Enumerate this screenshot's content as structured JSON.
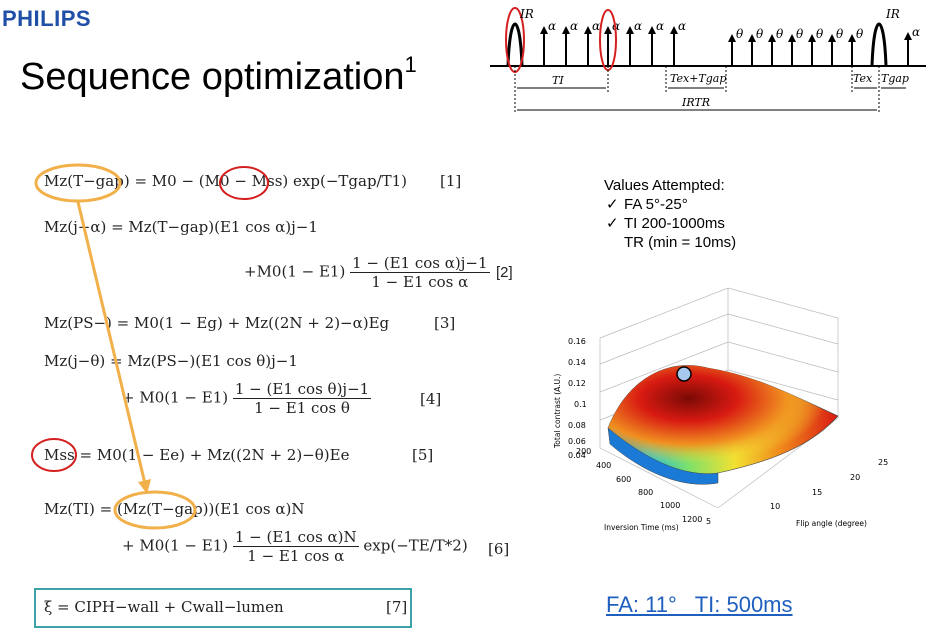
{
  "logo": "PHILIPS",
  "title": {
    "text": "Sequence optimization",
    "superscript": "1"
  },
  "diagram": {
    "ir_left": "IR",
    "ir_right": "IR",
    "alpha": "α",
    "theta": "θ",
    "ti": "TI",
    "tex_tgap": "Tex+Tgap",
    "irtr": "IRTR",
    "tex": "Tex",
    "tgap": "Tgap"
  },
  "equations": {
    "eq1": {
      "lhs": "Mz(T−gap)",
      "rhs": "= M0 − (M0 − Mss) exp(−Tgap/T1)",
      "number": "[1]"
    },
    "eq2a": {
      "text": "Mz(j−α) = Mz(T−gap)(E1 cos α)j−1"
    },
    "eq2b": {
      "prefix": "+M0(1 − E1)",
      "num": "1 − (E1 cos α)j−1",
      "den": "1 − E1 cos α",
      "number": "[2]"
    },
    "eq3": {
      "text": "Mz(PS−) = M0(1 − Eg) + Mz((2N + 2)−α)Eg",
      "number": "[3]"
    },
    "eq4a": {
      "text": "Mz(j−θ) = Mz(PS−)(E1 cos θ)j−1"
    },
    "eq4b": {
      "prefix": "+ M0(1 − E1)",
      "num": "1 − (E1 cos θ)j−1",
      "den": "1 − E1 cos θ",
      "number": "[4]"
    },
    "eq5": {
      "text": "Mss = M0(1 − Ee) + Mz((2N + 2)−θ)Ee",
      "number": "[5]"
    },
    "eq6a": {
      "text": "Mz(TI) = (Mz(T−gap))(E1 cos α)N"
    },
    "eq6b": {
      "prefix": "+ M0(1 − E1)",
      "num": "1 − (E1 cos α)N",
      "den": "1 − E1 cos α",
      "suffix": "exp(−TE/T*2)",
      "number": "[6]"
    },
    "eq7": {
      "text": "ξ = CIPH−wall + Cwall−lumen",
      "number": "[7]"
    }
  },
  "values_attempted": {
    "heading": "Values Attempted:",
    "check": "✓",
    "fa": "FA 5°-25°",
    "ti": "TI 200-1000ms",
    "tr": "TR (min = 10ms)"
  },
  "plot": {
    "zlabel": "Total contrast (A.U.)",
    "xlabel": "Inversion Time (ms)",
    "ylabel": "Flip angle (degree)",
    "z_ticks": [
      "0.16",
      "0.14",
      "0.12",
      "0.1",
      "0.08",
      "0.06",
      "0.04"
    ],
    "x_ticks": [
      "200",
      "400",
      "600",
      "800",
      "1000",
      "1200"
    ],
    "y_ticks": [
      "5",
      "10",
      "15",
      "20",
      "25"
    ]
  },
  "caption": "FA: 11°   TI: 500ms",
  "colors": {
    "logo": "#1f4fa6",
    "caption": "#1f5fbf",
    "highlight_orange": "#f2b04a",
    "highlight_red": "#d42020",
    "box": "#3aa2a8"
  }
}
